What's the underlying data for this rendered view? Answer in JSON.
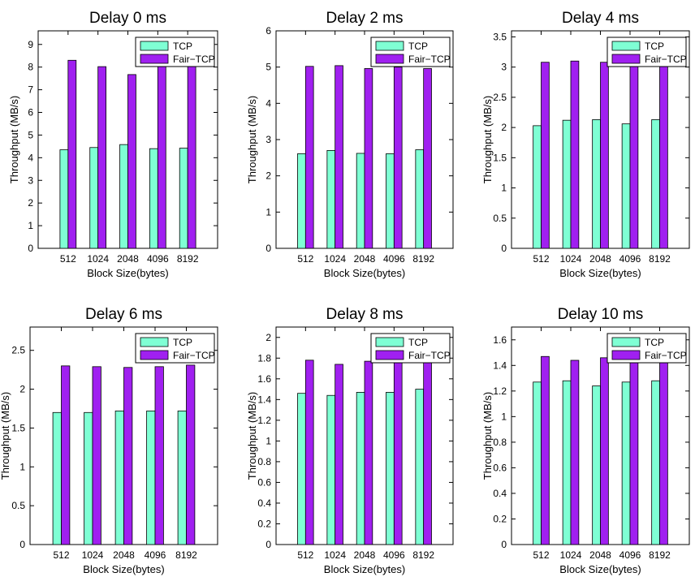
{
  "chart_data": [
    {
      "type": "bar",
      "title": "Delay 0 ms",
      "xlabel": "Block Size(bytes)",
      "ylabel": "Throughput (MB/s)",
      "categories": [
        "512",
        "1024",
        "2048",
        "4096",
        "8192"
      ],
      "ylim": [
        0,
        9.6
      ],
      "yticks": [
        "0",
        "1",
        "2",
        "3",
        "4",
        "5",
        "6",
        "7",
        "8",
        "9"
      ],
      "legend_position": "top-right",
      "series": [
        {
          "name": "TCP",
          "color": "#7fffd4",
          "values": [
            4.35,
            4.45,
            4.58,
            4.4,
            4.42
          ]
        },
        {
          "name": "Fair−TCP",
          "color": "#a020f0",
          "values": [
            8.3,
            8.02,
            7.67,
            8.1,
            8.1
          ]
        }
      ]
    },
    {
      "type": "bar",
      "title": "Delay 2 ms",
      "xlabel": "Block Size(bytes)",
      "ylabel": "Throughput (MB/s)",
      "categories": [
        "512",
        "1024",
        "2048",
        "4096",
        "8192"
      ],
      "ylim": [
        0,
        6
      ],
      "yticks": [
        "0",
        "1",
        "2",
        "3",
        "4",
        "5",
        "6"
      ],
      "legend_position": "top-right",
      "series": [
        {
          "name": "TCP",
          "color": "#7fffd4",
          "values": [
            2.61,
            2.7,
            2.62,
            2.61,
            2.72
          ]
        },
        {
          "name": "Fair−TCP",
          "color": "#a020f0",
          "values": [
            5.02,
            5.04,
            4.96,
            5.0,
            4.96
          ]
        }
      ]
    },
    {
      "type": "bar",
      "title": "Delay 4 ms",
      "xlabel": "Block Size(bytes)",
      "ylabel": "Throughput (MB/s)",
      "categories": [
        "512",
        "1024",
        "2048",
        "4096",
        "8192"
      ],
      "ylim": [
        0,
        3.6
      ],
      "yticks": [
        "0",
        "0.5",
        "1",
        "1.5",
        "2",
        "2.5",
        "3",
        "3.5"
      ],
      "legend_position": "top-right",
      "series": [
        {
          "name": "TCP",
          "color": "#7fffd4",
          "values": [
            2.03,
            2.12,
            2.13,
            2.06,
            2.13
          ]
        },
        {
          "name": "Fair−TCP",
          "color": "#a020f0",
          "values": [
            3.08,
            3.1,
            3.08,
            3.1,
            3.1
          ]
        }
      ]
    },
    {
      "type": "bar",
      "title": "Delay 6 ms",
      "xlabel": "Block Size(bytes)",
      "ylabel": "Throughput (MB/s)",
      "categories": [
        "512",
        "1024",
        "2048",
        "4096",
        "8192"
      ],
      "ylim": [
        0,
        2.8
      ],
      "yticks": [
        "0",
        "0.5",
        "1",
        "1.5",
        "2",
        "2.5"
      ],
      "legend_position": "top-right",
      "series": [
        {
          "name": "TCP",
          "color": "#7fffd4",
          "values": [
            1.7,
            1.7,
            1.72,
            1.72,
            1.72
          ]
        },
        {
          "name": "Fair−TCP",
          "color": "#a020f0",
          "values": [
            2.3,
            2.29,
            2.28,
            2.29,
            2.31
          ]
        }
      ]
    },
    {
      "type": "bar",
      "title": "Delay 8 ms",
      "xlabel": "Block Size(bytes)",
      "ylabel": "Throughput (MB/s)",
      "categories": [
        "512",
        "1024",
        "2048",
        "4096",
        "8192"
      ],
      "ylim": [
        0,
        2.1
      ],
      "yticks": [
        "0",
        "0.2",
        "0.4",
        "0.6",
        "0.8",
        "1",
        "1.2",
        "1.4",
        "1.6",
        "1.8",
        "2"
      ],
      "legend_position": "top-right",
      "series": [
        {
          "name": "TCP",
          "color": "#7fffd4",
          "values": [
            1.46,
            1.44,
            1.47,
            1.47,
            1.5
          ]
        },
        {
          "name": "Fair−TCP",
          "color": "#a020f0",
          "values": [
            1.78,
            1.74,
            1.77,
            1.79,
            1.79
          ]
        }
      ]
    },
    {
      "type": "bar",
      "title": "Delay 10 ms",
      "xlabel": "Block Size(bytes)",
      "ylabel": "Throughput (MB/s)",
      "categories": [
        "512",
        "1024",
        "2048",
        "4096",
        "8192"
      ],
      "ylim": [
        0,
        1.7
      ],
      "yticks": [
        "0",
        "0.2",
        "0.4",
        "0.6",
        "0.8",
        "1",
        "1.2",
        "1.4",
        "1.6"
      ],
      "legend_position": "top-right",
      "series": [
        {
          "name": "TCP",
          "color": "#7fffd4",
          "values": [
            1.27,
            1.28,
            1.24,
            1.27,
            1.28
          ]
        },
        {
          "name": "Fair−TCP",
          "color": "#a020f0",
          "values": [
            1.47,
            1.44,
            1.46,
            1.47,
            1.47
          ]
        }
      ]
    }
  ]
}
